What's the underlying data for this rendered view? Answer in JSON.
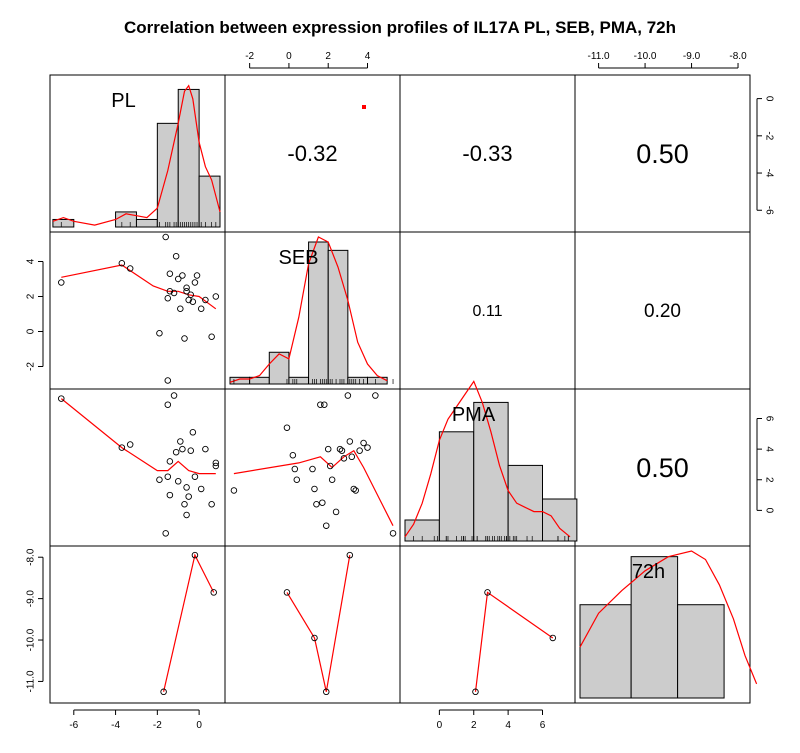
{
  "chart_data": {
    "type": "scatter",
    "title": "Correlation between expression profiles of IL17A PL, SEB, PMA, 72h",
    "variables": [
      "PL",
      "SEB",
      "PMA",
      "72h"
    ],
    "axes": {
      "PL": {
        "range": [
          -6.9,
          1.0
        ],
        "ticks": [
          -6,
          -4,
          -2,
          0
        ],
        "tick_labels": [
          "-6",
          "-4",
          "-2",
          "0"
        ]
      },
      "SEB": {
        "range": [
          -3.0,
          5.4
        ],
        "ticks": [
          -2,
          0,
          2,
          4
        ],
        "tick_labels": [
          "-2",
          "0",
          "2",
          "4"
        ]
      },
      "PMA": {
        "range": [
          -2.0,
          7.6
        ],
        "ticks": [
          0,
          2,
          4,
          6
        ],
        "tick_labels": [
          "0",
          "2",
          "4",
          "6"
        ]
      },
      "72h": {
        "range": [
          -11.4,
          -7.85
        ],
        "ticks": [
          -11,
          -10,
          -9,
          -8
        ],
        "tick_labels": [
          "-11.0",
          "-10.0",
          "-9.0",
          "-8.0"
        ]
      }
    },
    "correlations": [
      {
        "row": "PL",
        "col": "SEB",
        "value": "-0.32"
      },
      {
        "row": "PL",
        "col": "PMA",
        "value": "-0.33"
      },
      {
        "row": "PL",
        "col": "72h",
        "value": "0.50"
      },
      {
        "row": "SEB",
        "col": "PMA",
        "value": "0.11"
      },
      {
        "row": "SEB",
        "col": "72h",
        "value": "0.20"
      },
      {
        "row": "PMA",
        "col": "72h",
        "value": "0.50"
      }
    ],
    "pairs": {
      "PL_SEB": [
        [
          -6.6,
          2.8
        ],
        [
          -3.7,
          3.9
        ],
        [
          -3.3,
          3.6
        ],
        [
          -1.9,
          -0.1
        ],
        [
          -1.6,
          5.4
        ],
        [
          -1.5,
          -2.8
        ],
        [
          -1.5,
          1.9
        ],
        [
          -1.4,
          3.3
        ],
        [
          -1.4,
          2.3
        ],
        [
          -1.2,
          2.2
        ],
        [
          -1.1,
          4.3
        ],
        [
          -1.0,
          3.0
        ],
        [
          -0.9,
          1.3
        ],
        [
          -0.8,
          3.2
        ],
        [
          -0.7,
          -0.4
        ],
        [
          -0.6,
          2.3
        ],
        [
          -0.6,
          2.5
        ],
        [
          -0.5,
          1.8
        ],
        [
          -0.4,
          2.1
        ],
        [
          -0.3,
          1.7
        ],
        [
          -0.2,
          2.8
        ],
        [
          -0.1,
          3.2
        ],
        [
          0.1,
          1.3
        ],
        [
          0.3,
          1.8
        ],
        [
          0.6,
          -0.3
        ],
        [
          0.8,
          2.0
        ]
      ],
      "PL_PMA": [
        [
          -6.6,
          7.3
        ],
        [
          -3.7,
          4.1
        ],
        [
          -3.3,
          4.3
        ],
        [
          -1.9,
          2.0
        ],
        [
          -1.6,
          -1.5
        ],
        [
          -1.5,
          6.9
        ],
        [
          -1.5,
          2.2
        ],
        [
          -1.4,
          3.2
        ],
        [
          -1.4,
          1.0
        ],
        [
          -1.2,
          7.5
        ],
        [
          -1.1,
          3.8
        ],
        [
          -1.0,
          1.9
        ],
        [
          -0.9,
          4.5
        ],
        [
          -0.8,
          4.0
        ],
        [
          -0.7,
          0.4
        ],
        [
          -0.6,
          -0.3
        ],
        [
          -0.6,
          1.5
        ],
        [
          -0.5,
          0.9
        ],
        [
          -0.4,
          3.9
        ],
        [
          -0.3,
          5.1
        ],
        [
          -0.2,
          2.2
        ],
        [
          0.1,
          1.4
        ],
        [
          0.3,
          4.0
        ],
        [
          0.6,
          0.4
        ],
        [
          0.8,
          2.9
        ],
        [
          0.8,
          3.1
        ]
      ],
      "SEB_PMA": [
        [
          -2.8,
          1.3
        ],
        [
          -0.1,
          5.4
        ],
        [
          0.2,
          3.6
        ],
        [
          0.3,
          2.7
        ],
        [
          0.4,
          2.0
        ],
        [
          1.2,
          2.7
        ],
        [
          1.3,
          1.4
        ],
        [
          1.4,
          0.4
        ],
        [
          1.6,
          6.9
        ],
        [
          1.7,
          0.5
        ],
        [
          1.8,
          6.9
        ],
        [
          1.9,
          -1.0
        ],
        [
          2.0,
          4.0
        ],
        [
          2.1,
          2.9
        ],
        [
          2.2,
          2.0
        ],
        [
          2.4,
          -0.1
        ],
        [
          2.6,
          4.0
        ],
        [
          2.7,
          3.9
        ],
        [
          2.8,
          3.4
        ],
        [
          3.0,
          7.5
        ],
        [
          3.1,
          4.5
        ],
        [
          3.2,
          3.5
        ],
        [
          3.3,
          1.4
        ],
        [
          3.4,
          1.3
        ],
        [
          3.6,
          3.9
        ],
        [
          3.8,
          4.4
        ],
        [
          4.0,
          4.1
        ],
        [
          4.4,
          7.5
        ],
        [
          5.3,
          -1.5
        ]
      ],
      "PL_72h": [
        [
          -1.7,
          -11.25
        ],
        [
          -0.2,
          -7.95
        ],
        [
          0.7,
          -8.85
        ]
      ],
      "SEB_72h": [
        [
          -0.1,
          -8.85
        ],
        [
          1.3,
          -9.95
        ],
        [
          1.9,
          -11.25
        ],
        [
          3.1,
          -7.95
        ]
      ],
      "PMA_72h": [
        [
          2.1,
          -11.25
        ],
        [
          2.8,
          -8.85
        ],
        [
          6.6,
          -9.95
        ]
      ]
    },
    "smoothers": {
      "PL_SEB": [
        [
          -6.6,
          3.1
        ],
        [
          -3.7,
          3.8
        ],
        [
          -2.2,
          2.6
        ],
        [
          -1.5,
          2.3
        ],
        [
          -1.0,
          2.3
        ],
        [
          -0.5,
          2.1
        ],
        [
          0.0,
          2.0
        ],
        [
          0.8,
          1.3
        ]
      ],
      "PL_PMA": [
        [
          -6.6,
          7.3
        ],
        [
          -3.7,
          4.1
        ],
        [
          -2.0,
          2.6
        ],
        [
          -1.5,
          2.6
        ],
        [
          -1.0,
          3.2
        ],
        [
          -0.5,
          2.6
        ],
        [
          0.0,
          2.4
        ],
        [
          0.8,
          2.4
        ]
      ],
      "SEB_PMA": [
        [
          -2.8,
          2.4
        ],
        [
          0.5,
          3.1
        ],
        [
          1.6,
          3.5
        ],
        [
          2.2,
          2.8
        ],
        [
          2.8,
          3.5
        ],
        [
          3.3,
          3.9
        ],
        [
          3.8,
          2.8
        ],
        [
          5.3,
          -1.0
        ]
      ],
      "PL_72h": [
        [
          -1.7,
          -11.25
        ],
        [
          -0.2,
          -7.95
        ],
        [
          0.7,
          -8.85
        ]
      ],
      "SEB_72h": [
        [
          -0.1,
          -8.85
        ],
        [
          1.3,
          -9.95
        ],
        [
          1.9,
          -11.25
        ],
        [
          3.1,
          -7.95
        ]
      ],
      "PMA_72h": [
        [
          2.1,
          -11.25
        ],
        [
          2.8,
          -8.85
        ],
        [
          6.6,
          -9.95
        ]
      ]
    },
    "histograms": {
      "PL": {
        "breaks": [
          -7,
          -6,
          -5,
          -4,
          -3,
          -2,
          -1,
          0,
          1
        ],
        "density": [
          0.04,
          0,
          0,
          0.08,
          0.04,
          0.55,
          0.73,
          0.27
        ],
        "ymax": 0.78,
        "kde": [
          [
            -7,
            0.03
          ],
          [
            -6.5,
            0.05
          ],
          [
            -6,
            0.03
          ],
          [
            -5,
            0.01
          ],
          [
            -4,
            0.04
          ],
          [
            -3.5,
            0.07
          ],
          [
            -3,
            0.06
          ],
          [
            -2.5,
            0.05
          ],
          [
            -2,
            0.1
          ],
          [
            -1.5,
            0.3
          ],
          [
            -1.0,
            0.55
          ],
          [
            -0.7,
            0.72
          ],
          [
            -0.5,
            0.75
          ],
          [
            -0.3,
            0.68
          ],
          [
            0,
            0.45
          ],
          [
            0.3,
            0.32
          ],
          [
            0.6,
            0.25
          ],
          [
            1.0,
            0.08
          ]
        ],
        "rug": [
          -6.6,
          -3.7,
          -3.3,
          -1.9,
          -1.6,
          -1.5,
          -1.4,
          -1.2,
          -1.1,
          -1.0,
          -0.9,
          -0.8,
          -0.7,
          -0.6,
          -0.5,
          -0.4,
          -0.3,
          -0.2,
          -0.1,
          0.1,
          0.3,
          0.6,
          0.8
        ]
      },
      "SEB": {
        "breaks": [
          -3,
          -2,
          -1,
          0,
          1,
          2,
          3,
          4,
          5
        ],
        "density": [
          0.04,
          0.04,
          0.19,
          0.04,
          0.85,
          0.8,
          0.04,
          0.04
        ],
        "ymax": 0.88,
        "kde": [
          [
            -3,
            0.01
          ],
          [
            -2.5,
            0.03
          ],
          [
            -2,
            0.03
          ],
          [
            -1.5,
            0.05
          ],
          [
            -1,
            0.12
          ],
          [
            -0.5,
            0.18
          ],
          [
            0,
            0.15
          ],
          [
            0.5,
            0.4
          ],
          [
            1.0,
            0.72
          ],
          [
            1.5,
            0.88
          ],
          [
            2.0,
            0.85
          ],
          [
            2.5,
            0.7
          ],
          [
            3.0,
            0.5
          ],
          [
            3.5,
            0.25
          ],
          [
            4.0,
            0.12
          ],
          [
            4.5,
            0.05
          ],
          [
            5.0,
            0.02
          ]
        ],
        "rug": [
          -2.8,
          -0.1,
          0.2,
          0.3,
          0.4,
          1.2,
          1.3,
          1.4,
          1.6,
          1.7,
          1.8,
          1.9,
          2.0,
          2.1,
          2.2,
          2.4,
          2.6,
          2.7,
          2.8,
          3.0,
          3.1,
          3.2,
          3.3,
          3.4,
          3.6,
          3.8,
          4.0,
          4.4,
          5.3
        ]
      },
      "PMA": {
        "breaks": [
          -2,
          0,
          2,
          4,
          6,
          8
        ],
        "density": [
          0.05,
          0.26,
          0.33,
          0.18,
          0.1
        ],
        "ymax": 0.35,
        "kde": [
          [
            -2,
            0.01
          ],
          [
            -1.5,
            0.04
          ],
          [
            -1,
            0.09
          ],
          [
            -0.5,
            0.16
          ],
          [
            0,
            0.24
          ],
          [
            0.5,
            0.29
          ],
          [
            1,
            0.32
          ],
          [
            1.5,
            0.35
          ],
          [
            2,
            0.38
          ],
          [
            2.5,
            0.33
          ],
          [
            3,
            0.26
          ],
          [
            3.5,
            0.18
          ],
          [
            4,
            0.12
          ],
          [
            4.5,
            0.09
          ],
          [
            5,
            0.08
          ],
          [
            5.5,
            0.07
          ],
          [
            6,
            0.07
          ],
          [
            6.5,
            0.06
          ],
          [
            7,
            0.03
          ],
          [
            7.6,
            0.01
          ]
        ],
        "rug": [
          -1.5,
          -1.0,
          -0.3,
          -0.1,
          0.4,
          0.4,
          0.5,
          1.0,
          1.3,
          1.4,
          1.4,
          1.5,
          1.9,
          2.0,
          2.0,
          2.2,
          2.2,
          2.7,
          2.7,
          2.8,
          2.9,
          3.1,
          3.2,
          3.4,
          3.5,
          3.6,
          3.8,
          3.9,
          3.9,
          4.0,
          4.0,
          4.0,
          4.1,
          4.3,
          4.4,
          4.5,
          5.1,
          5.4,
          6.9,
          6.9,
          7.3,
          7.5,
          7.5
        ]
      },
      "72h": {
        "breaks": [
          -11.4,
          -10.3,
          -9.3,
          -8.3
        ],
        "density": [
          0.33,
          0.5,
          0.33
        ],
        "ymax": 0.52,
        "kde": [
          [
            -11.4,
            0.18
          ],
          [
            -11.0,
            0.3
          ],
          [
            -10.5,
            0.38
          ],
          [
            -10.0,
            0.45
          ],
          [
            -9.5,
            0.5
          ],
          [
            -9.0,
            0.52
          ],
          [
            -8.7,
            0.49
          ],
          [
            -8.4,
            0.4
          ],
          [
            -8.1,
            0.28
          ],
          [
            -7.85,
            0.15
          ],
          [
            -7.6,
            0.05
          ]
        ]
      }
    }
  }
}
